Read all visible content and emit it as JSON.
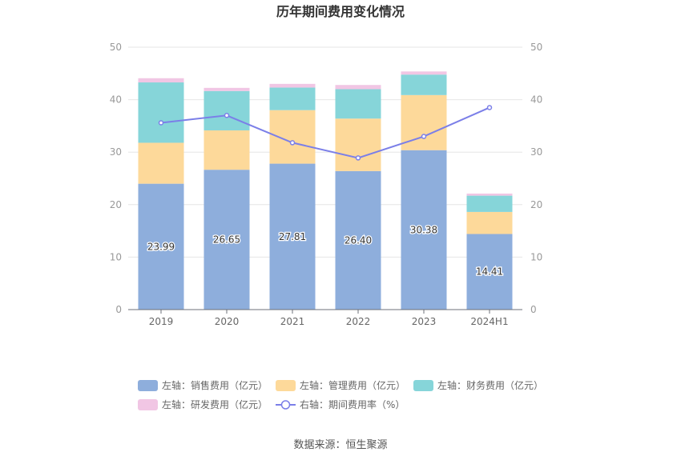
{
  "chart_data": {
    "type": "bar",
    "stacked": true,
    "title": "历年期间费用变化情况",
    "categories": [
      "2019",
      "2020",
      "2021",
      "2022",
      "2023",
      "2024H1"
    ],
    "left_axis": {
      "ylim": [
        0,
        50
      ],
      "ticks": [
        "0",
        "10",
        "20",
        "30",
        "40",
        "50"
      ]
    },
    "right_axis": {
      "ylim": [
        0,
        50
      ],
      "ticks": [
        "0",
        "10",
        "20",
        "30",
        "40",
        "50"
      ]
    },
    "grid": true,
    "series": [
      {
        "name": "左轴：销售费用（亿元）",
        "axis": "left",
        "color": "#8eaedc",
        "values": [
          23.99,
          26.65,
          27.81,
          26.4,
          30.38,
          14.41
        ],
        "labels": [
          "23.99",
          "26.65",
          "27.81",
          "26.40",
          "30.38",
          "14.41"
        ]
      },
      {
        "name": "左轴：管理费用（亿元）",
        "axis": "left",
        "color": "#fdd99a",
        "values": [
          7.8,
          7.5,
          10.2,
          10.0,
          10.5,
          4.2
        ]
      },
      {
        "name": "左轴：财务费用（亿元）",
        "axis": "left",
        "color": "#86d5d9",
        "values": [
          11.5,
          7.5,
          4.3,
          5.6,
          3.9,
          3.1
        ]
      },
      {
        "name": "左轴：研发费用（亿元）",
        "axis": "left",
        "color": "#f1c6e4",
        "values": [
          0.8,
          0.6,
          0.7,
          0.8,
          0.6,
          0.4
        ]
      }
    ],
    "line": {
      "name": "右轴：期间费用率（%）",
      "axis": "right",
      "color": "#7b7fe8",
      "values": [
        35.6,
        37.0,
        31.8,
        28.9,
        33.0,
        38.5
      ]
    },
    "legend": "bottom-center"
  },
  "source": "数据来源：恒生聚源"
}
